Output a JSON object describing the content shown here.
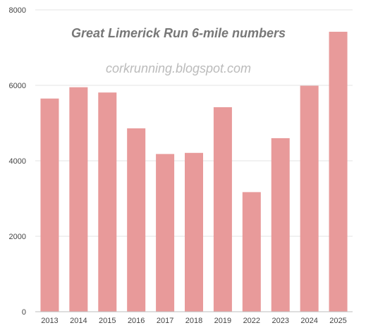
{
  "chart_data": {
    "type": "bar",
    "title": "Great Limerick Run 6-mile numbers",
    "subtitle": "corkrunning.blogspot.com",
    "xlabel": "",
    "ylabel": "",
    "categories": [
      "2013",
      "2014",
      "2015",
      "2016",
      "2017",
      "2018",
      "2019",
      "2022",
      "2023",
      "2024",
      "2025"
    ],
    "values": [
      5650,
      5950,
      5810,
      4860,
      4180,
      4210,
      5420,
      3170,
      4600,
      5990,
      7420
    ],
    "ylim": [
      0,
      8000
    ],
    "yticks": [
      0,
      2000,
      4000,
      6000,
      8000
    ],
    "grid": true,
    "legend": "none",
    "bar_color": "#e89a9a"
  }
}
